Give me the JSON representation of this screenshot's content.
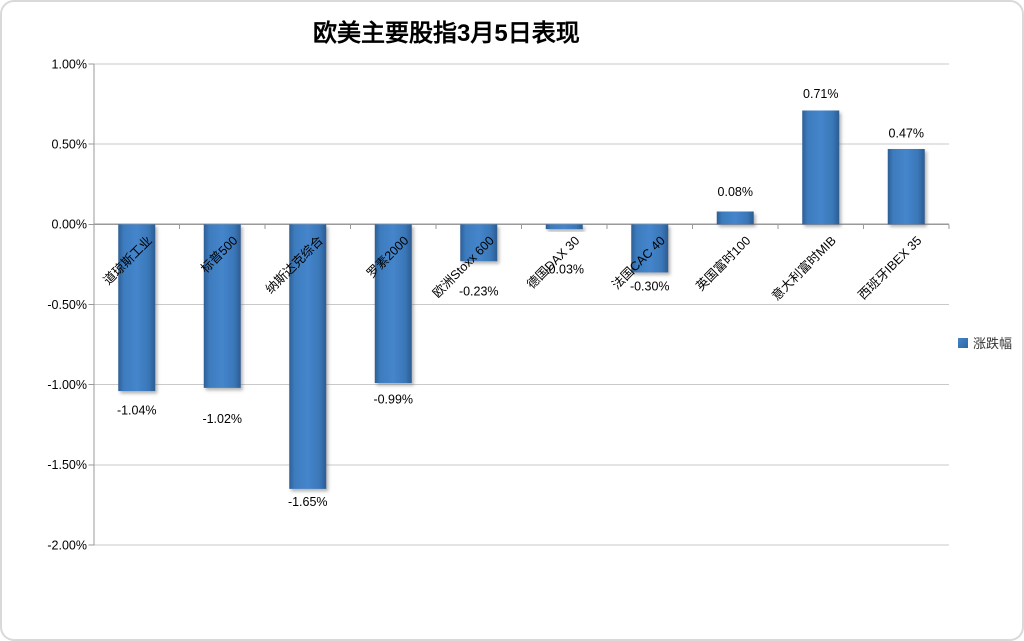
{
  "title": "欧美主要股指3月5日表现",
  "legend": {
    "label": "涨跌幅",
    "color": "#3a77b8"
  },
  "colors": {
    "bar": "#3a77b8",
    "bar_edge": "#2d5f96",
    "gridline": "#c9c9c9",
    "axis": "#9a9a9a",
    "text": "#000000"
  },
  "chart_data": {
    "type": "bar",
    "title": "欧美主要股指3月5日表现",
    "categories": [
      "道琼斯工业",
      "标普500",
      "纳斯达克综合",
      "罗素2000",
      "欧洲Stoxx 600",
      "德国DAX 30",
      "法国CAC 40",
      "英国富时100",
      "意大利富时MIB",
      "西班牙IBEX 35"
    ],
    "series": [
      {
        "name": "涨跌幅",
        "values": [
          -1.04,
          -1.02,
          -1.65,
          -0.99,
          -0.23,
          -0.03,
          -0.3,
          0.08,
          0.71,
          0.47
        ]
      }
    ],
    "data_labels": [
      "-1.04%",
      "-1.02%",
      "-1.65%",
      "-0.99%",
      "-0.23%",
      "-0.03%",
      "-0.30%",
      "0.08%",
      "0.71%",
      "0.47%"
    ],
    "xlabel": "",
    "ylabel": "",
    "ylim": [
      -2.0,
      1.0
    ],
    "ytick_step": 0.5,
    "ytick_labels": [
      "1.00%",
      "0.50%",
      "0.00%",
      "-0.50%",
      "-1.00%",
      "-1.50%",
      "-2.00%"
    ],
    "ytick_values": [
      1.0,
      0.5,
      0.0,
      -0.5,
      -1.0,
      -1.5,
      -2.0
    ],
    "grid": true,
    "legend_position": "right",
    "category_label_rotation_deg": 45
  }
}
